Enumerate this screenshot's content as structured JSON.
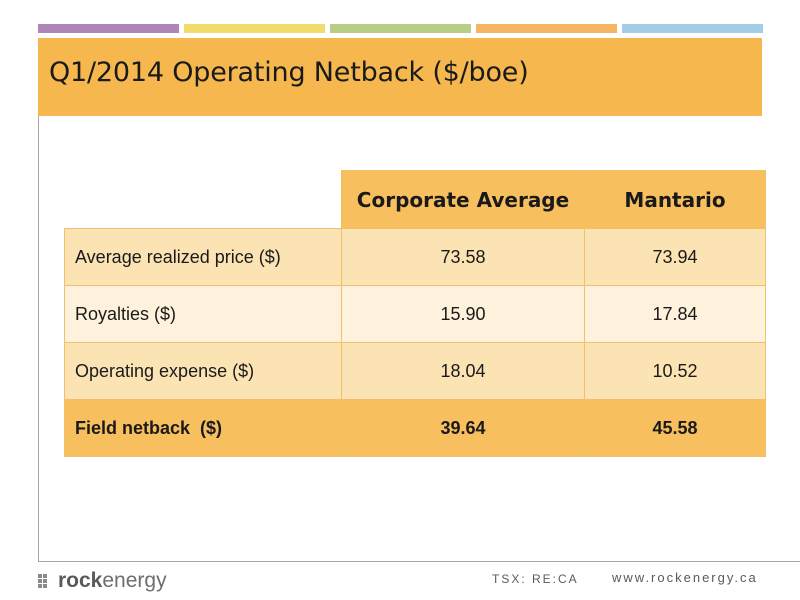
{
  "slide": {
    "title": "Q1/2014 Operating Netback ($/boe)"
  },
  "table": {
    "headers": [
      "Corporate Average",
      "Mantario"
    ],
    "rows": [
      {
        "label": "Average realized price ($)",
        "corporate": "73.58",
        "mantario": "73.94"
      },
      {
        "label": "Royalties ($)",
        "corporate": "15.90",
        "mantario": "17.84"
      },
      {
        "label": "Operating expense ($)",
        "corporate": "18.04",
        "mantario": "10.52"
      },
      {
        "label": "Field netback  ($)",
        "corporate": "39.64",
        "mantario": "45.58"
      }
    ]
  },
  "footer": {
    "logo_bold": "rock",
    "logo_rest": "energy",
    "ticker": "TSX: RE:CA",
    "website": "www.rockenergy.ca"
  },
  "colors": {
    "accent_orange": "#f6b84e",
    "row_light": "#fce3b4",
    "row_lighter": "#fef2dd",
    "header_bars": [
      "#b085b7",
      "#f2dc6b",
      "#b8cd86",
      "#f6b465",
      "#a6cde6"
    ]
  }
}
